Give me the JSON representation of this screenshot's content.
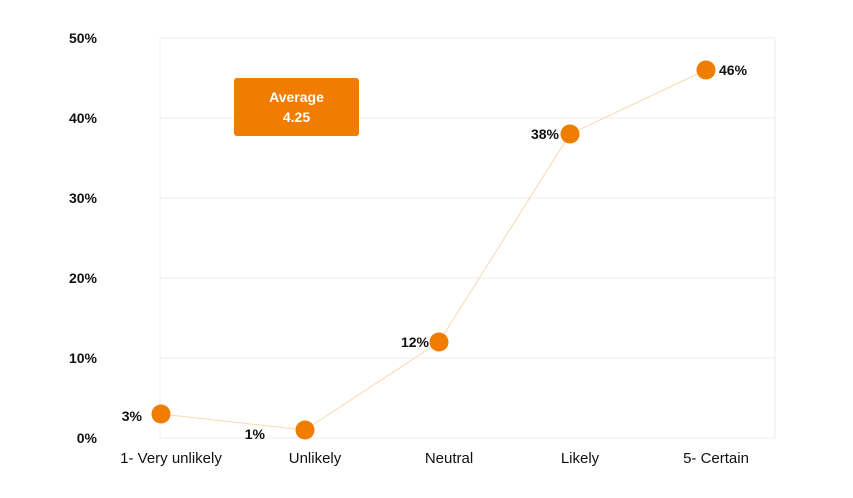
{
  "chart_data": {
    "type": "line",
    "categories": [
      "1- Very unlikely",
      "Unlikely",
      "Neutral",
      "Likely",
      "5- Certain"
    ],
    "series": [
      {
        "values": [
          3,
          1,
          12,
          38,
          46
        ]
      }
    ],
    "data_labels": [
      "3%",
      "1%",
      "12%",
      "38%",
      "46%"
    ],
    "y_ticks": [
      "0%",
      "10%",
      "20%",
      "30%",
      "40%",
      "50%"
    ],
    "ylim": [
      0,
      50
    ],
    "grid": true,
    "colors": {
      "marker": "#f07c00",
      "line": "#f8d9b0",
      "grid": "#ececec",
      "text": "#111111"
    }
  },
  "annotation": {
    "title": "Average",
    "value": "4.25"
  }
}
